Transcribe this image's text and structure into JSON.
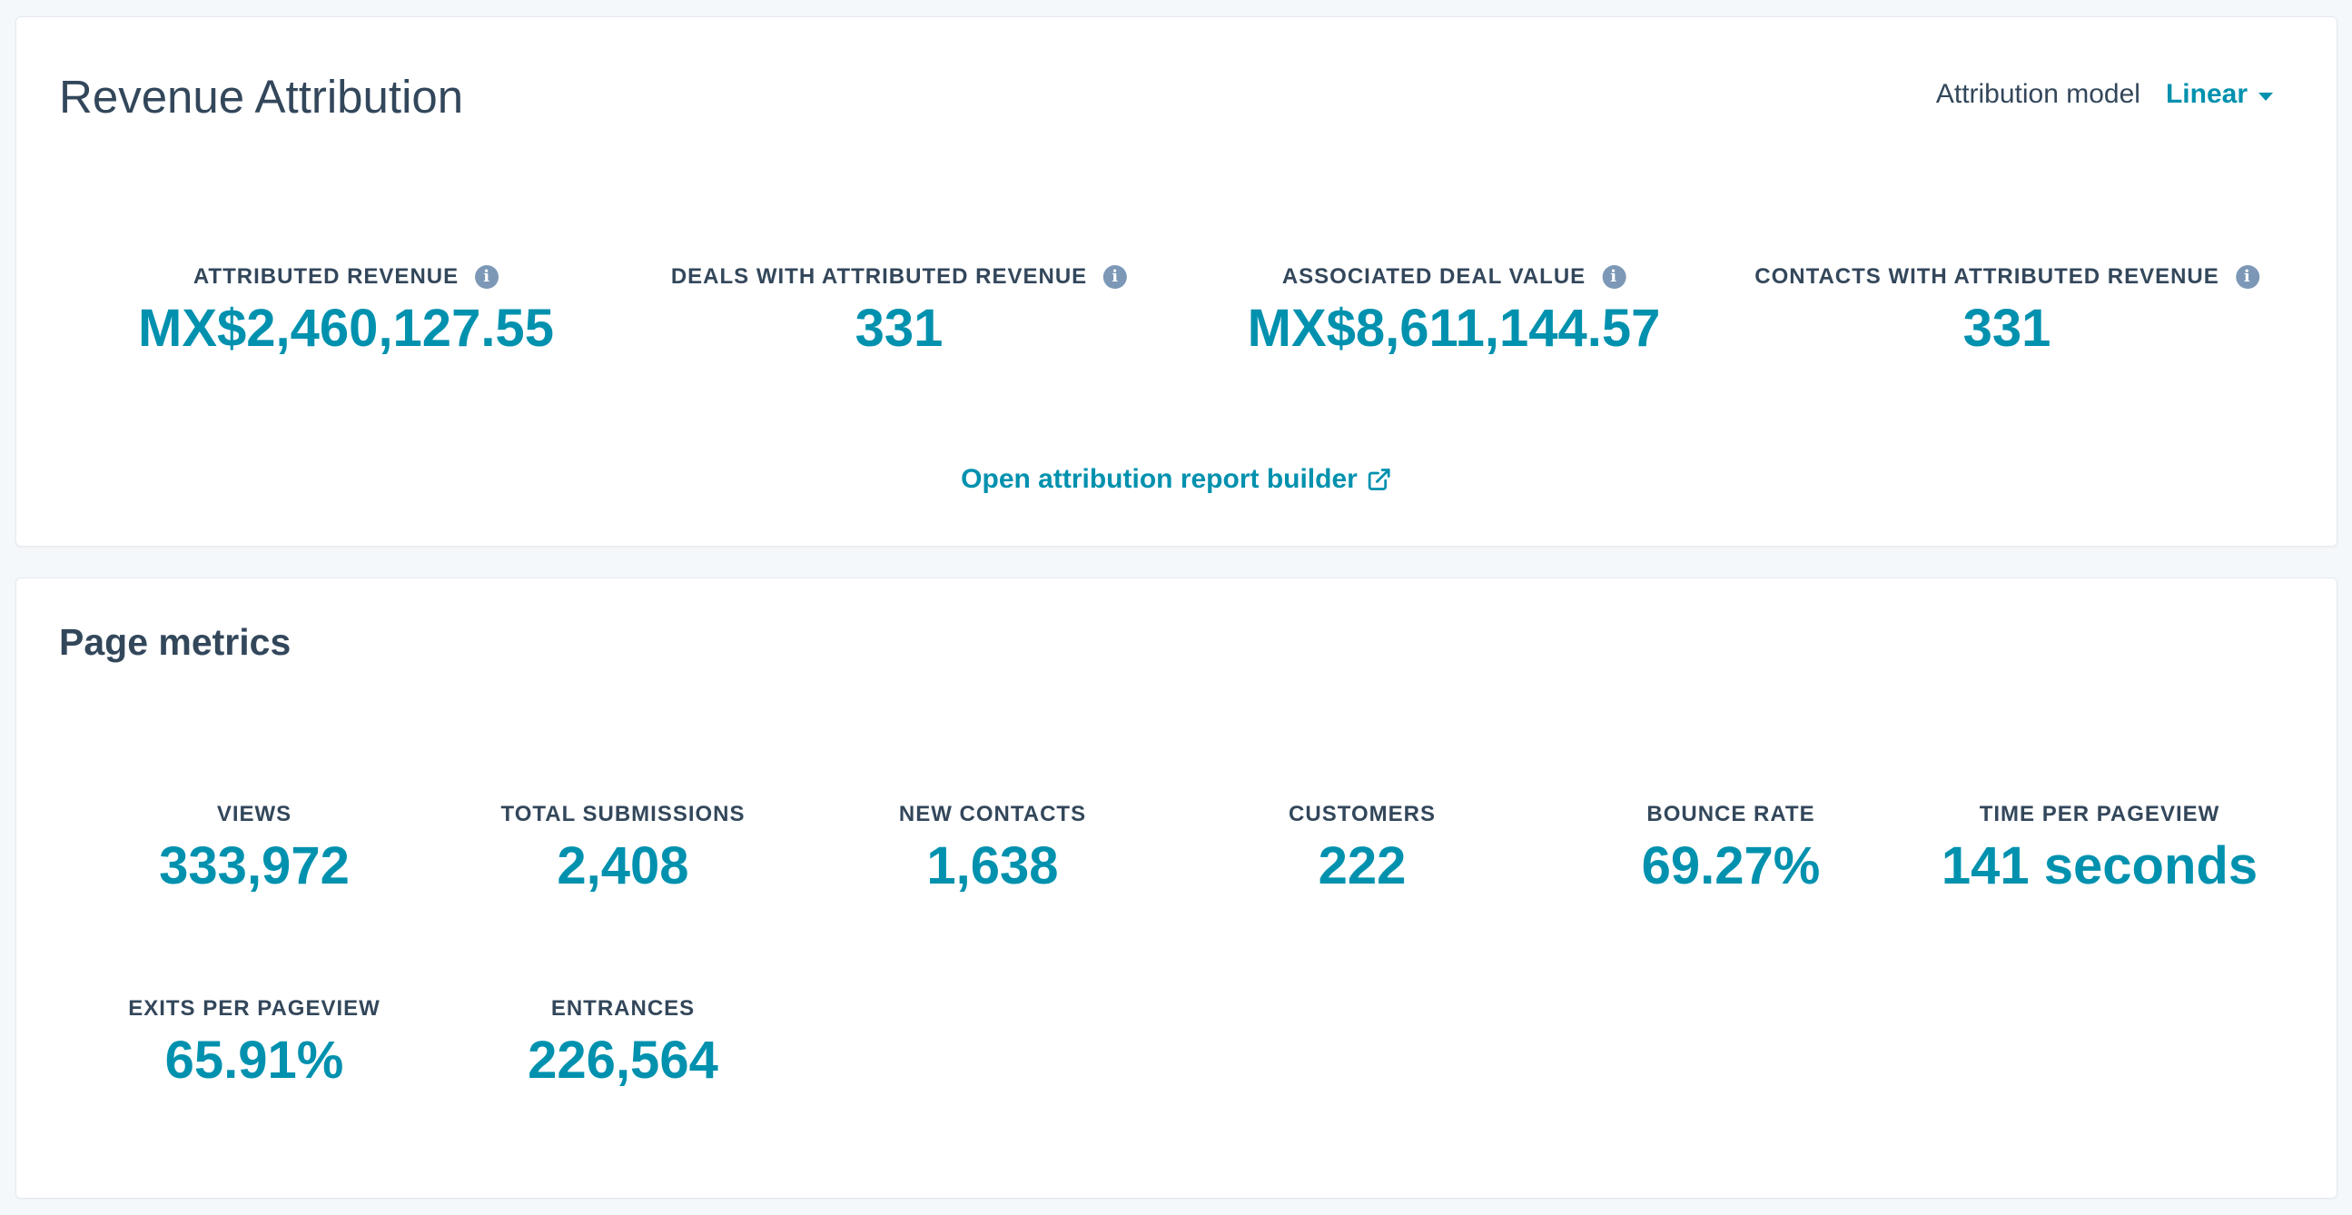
{
  "revenue_card": {
    "title": "Revenue Attribution",
    "model_label": "Attribution model",
    "model_value": "Linear",
    "kpis": [
      {
        "label": "ATTRIBUTED REVENUE",
        "value": "MX$2,460,127.55"
      },
      {
        "label": "DEALS WITH ATTRIBUTED REVENUE",
        "value": "331"
      },
      {
        "label": "ASSOCIATED DEAL VALUE",
        "value": "MX$8,611,144.57"
      },
      {
        "label": "CONTACTS WITH ATTRIBUTED REVENUE",
        "value": "331"
      }
    ],
    "link_label": "Open attribution report builder"
  },
  "metrics_card": {
    "title": "Page metrics",
    "metrics": [
      {
        "label": "VIEWS",
        "value": "333,972"
      },
      {
        "label": "TOTAL SUBMISSIONS",
        "value": "2,408"
      },
      {
        "label": "NEW CONTACTS",
        "value": "1,638"
      },
      {
        "label": "CUSTOMERS",
        "value": "222"
      },
      {
        "label": "BOUNCE RATE",
        "value": "69.27%"
      },
      {
        "label": "TIME PER PAGEVIEW",
        "value": "141 seconds"
      },
      {
        "label": "EXITS PER PAGEVIEW",
        "value": "65.91%"
      },
      {
        "label": "ENTRANCES",
        "value": "226,564"
      }
    ]
  },
  "icons": {
    "info": "info-icon",
    "caret": "chevron-down-icon",
    "external_link": "external-link-icon"
  },
  "colors": {
    "accent": "#0091ae",
    "text": "#33475b",
    "info_icon": "#7c98b6",
    "background": "#f5f8fa"
  }
}
